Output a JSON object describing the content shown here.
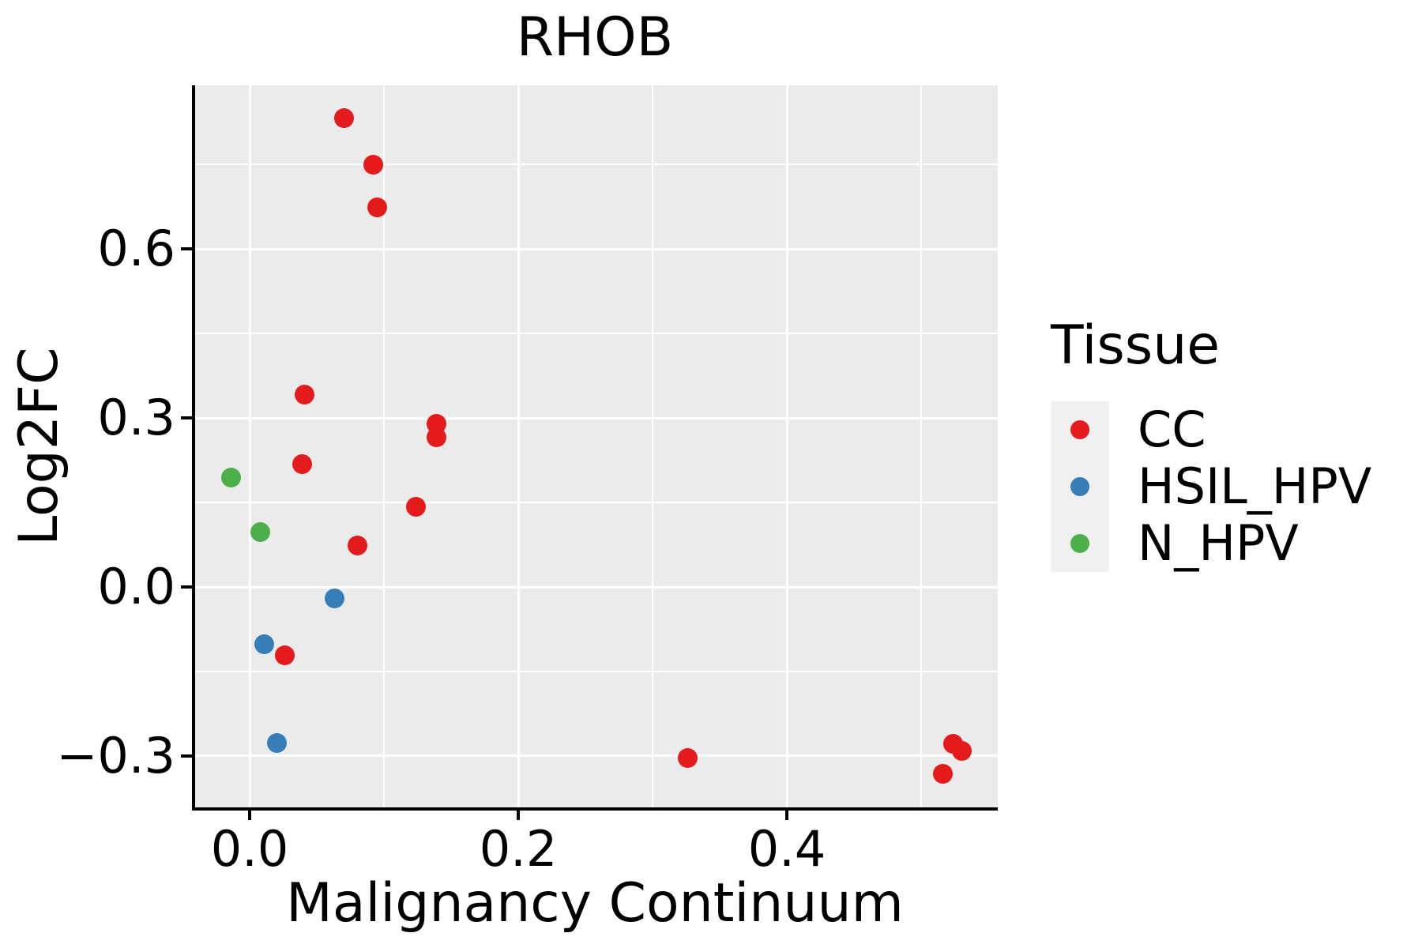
{
  "title": "RHOB",
  "axes": {
    "x": {
      "label": "Malignancy Continuum",
      "ticks": [
        {
          "v": 0.0,
          "label": "0.0"
        },
        {
          "v": 0.2,
          "label": "0.2"
        },
        {
          "v": 0.4,
          "label": "0.4"
        }
      ],
      "minor": [
        0.1,
        0.3,
        0.5
      ]
    },
    "y": {
      "label": "Log2FC",
      "ticks": [
        {
          "v": -0.3,
          "label": "−0.3"
        },
        {
          "v": 0.0,
          "label": "0.0"
        },
        {
          "v": 0.3,
          "label": "0.3"
        },
        {
          "v": 0.6,
          "label": "0.6"
        }
      ],
      "minor": [
        -0.15,
        0.15,
        0.45,
        0.75
      ]
    }
  },
  "legend": {
    "title": "Tissue",
    "items": [
      {
        "label": "CC",
        "color": "#E41A1C"
      },
      {
        "label": "HSIL_HPV",
        "color": "#377EB8"
      },
      {
        "label": "N_HPV",
        "color": "#4DAF4A"
      }
    ]
  },
  "chart_data": {
    "type": "scatter",
    "title": "RHOB",
    "xlabel": "Malignancy Continuum",
    "ylabel": "Log2FC",
    "xlim": [
      -0.041,
      0.557
    ],
    "ylim": [
      -0.391,
      0.891
    ],
    "grid": "on",
    "legend_position": "right",
    "panel_bg": "#EBEBEB",
    "series": [
      {
        "name": "CC",
        "color": "#E41A1C",
        "points": [
          [
            0.07,
            0.833
          ],
          [
            0.092,
            0.749
          ],
          [
            0.095,
            0.674
          ],
          [
            0.041,
            0.342
          ],
          [
            0.139,
            0.29
          ],
          [
            0.139,
            0.266
          ],
          [
            0.039,
            0.218
          ],
          [
            0.124,
            0.143
          ],
          [
            0.08,
            0.074
          ],
          [
            0.026,
            -0.121
          ],
          [
            0.326,
            -0.303
          ],
          [
            0.524,
            -0.279
          ],
          [
            0.53,
            -0.291
          ],
          [
            0.516,
            -0.331
          ]
        ]
      },
      {
        "name": "HSIL_HPV",
        "color": "#377EB8",
        "points": [
          [
            0.063,
            -0.02
          ],
          [
            0.011,
            -0.101
          ],
          [
            0.02,
            -0.277
          ]
        ]
      },
      {
        "name": "N_HPV",
        "color": "#4DAF4A",
        "points": [
          [
            -0.014,
            0.194
          ],
          [
            0.008,
            0.098
          ]
        ]
      }
    ]
  }
}
